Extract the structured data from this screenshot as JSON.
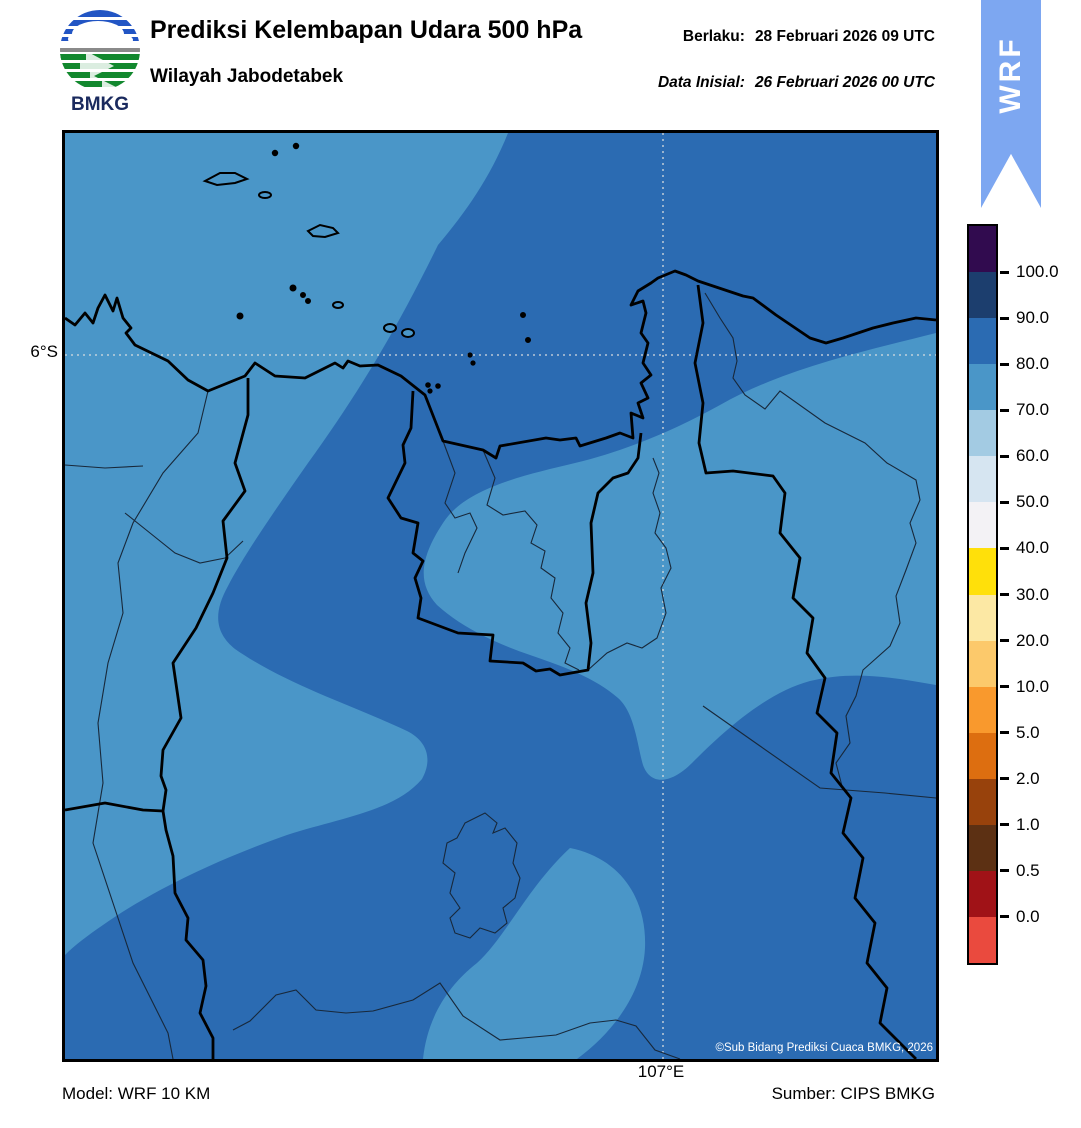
{
  "header": {
    "title": "Prediksi Kelembapan Udara 500 hPa",
    "subtitle": "Wilayah Jabodetabek",
    "valid_label": "Berlaku:",
    "valid_value": "28 Februari 2026 09 UTC",
    "init_label": "Data Inisial:",
    "init_value": "26 Februari 2026 00 UTC"
  },
  "logo": {
    "text": "BMKG"
  },
  "ribbon": {
    "label": "WRF",
    "color": "#7DA7F1"
  },
  "map": {
    "lat_label": "6°S",
    "lon_label": "107°E",
    "copyright": "©Sub Bidang Prediksi Cuaca BMKG, 2026",
    "fill_bands_visible": [
      {
        "range": "80.0–90.0",
        "color": "#2B6BB2"
      },
      {
        "range": "70.0–80.0",
        "color": "#4A96C8"
      }
    ]
  },
  "colorbar": {
    "ticks": [
      "100.0",
      "90.0",
      "80.0",
      "70.0",
      "60.0",
      "50.0",
      "40.0",
      "30.0",
      "20.0",
      "10.0",
      "5.0",
      "2.0",
      "1.0",
      "0.5",
      "0.0"
    ],
    "colors": [
      "#310B4F",
      "#1C3E6E",
      "#2B6BB2",
      "#4A96C8",
      "#A3CBE3",
      "#D6E5F1",
      "#F3F2F5",
      "#FFE00A",
      "#FCE8A4",
      "#FCC96B",
      "#F9992D",
      "#DD6E10",
      "#98420C",
      "#5C3013",
      "#A01217",
      "#EA4A3E"
    ]
  },
  "footer": {
    "model": "Model: WRF 10 KM",
    "source": "Sumber: CIPS BMKG"
  }
}
